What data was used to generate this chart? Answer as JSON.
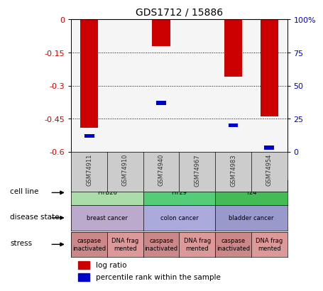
{
  "title": "GDS1712 / 15886",
  "samples": [
    "GSM74911",
    "GSM74910",
    "GSM74940",
    "GSM74967",
    "GSM74983",
    "GSM74954"
  ],
  "log_ratios": [
    -0.49,
    0.0,
    -0.12,
    0.0,
    -0.26,
    -0.44
  ],
  "percentile_ranks": [
    12,
    0,
    37,
    0,
    20,
    3
  ],
  "ylim_left": [
    -0.6,
    0.0
  ],
  "ylim_right": [
    0,
    100
  ],
  "yticks_left": [
    0.0,
    -0.15,
    -0.3,
    -0.45,
    -0.6
  ],
  "yticks_right": [
    0,
    25,
    50,
    75,
    100
  ],
  "left_color": "#cc0000",
  "right_color": "#0000cc",
  "bar_width": 0.5,
  "cell_lines": [
    {
      "label": "HTB26",
      "span": [
        0,
        2
      ],
      "color": "#aaddaa"
    },
    {
      "label": "HT29",
      "span": [
        2,
        4
      ],
      "color": "#55cc77"
    },
    {
      "label": "T24",
      "span": [
        4,
        6
      ],
      "color": "#44bb55"
    }
  ],
  "disease_states": [
    {
      "label": "breast cancer",
      "span": [
        0,
        2
      ],
      "color": "#bbaacc"
    },
    {
      "label": "colon cancer",
      "span": [
        2,
        4
      ],
      "color": "#aaaadd"
    },
    {
      "label": "bladder cancer",
      "span": [
        4,
        6
      ],
      "color": "#9999cc"
    }
  ],
  "stress_labels": [
    {
      "label": "caspase\ninactivated",
      "span": [
        0,
        1
      ],
      "color": "#cc8888"
    },
    {
      "label": "DNA frag\nmented",
      "span": [
        1,
        2
      ],
      "color": "#dd9999"
    },
    {
      "label": "caspase\ninactivated",
      "span": [
        2,
        3
      ],
      "color": "#cc8888"
    },
    {
      "label": "DNA frag\nmented",
      "span": [
        3,
        4
      ],
      "color": "#dd9999"
    },
    {
      "label": "caspase\ninactivated",
      "span": [
        4,
        5
      ],
      "color": "#cc8888"
    },
    {
      "label": "DNA frag\nmented",
      "span": [
        5,
        6
      ],
      "color": "#dd9999"
    }
  ],
  "row_labels": [
    "cell line",
    "disease state",
    "stress"
  ],
  "legend_items": [
    {
      "label": "log ratio",
      "color": "#cc0000"
    },
    {
      "label": "percentile rank within the sample",
      "color": "#0000cc"
    }
  ],
  "bg_color": "#ffffff",
  "tick_label_color_left": "#cc0000",
  "tick_label_color_right": "#0000cc",
  "chart_bg": "#f5f5f5"
}
